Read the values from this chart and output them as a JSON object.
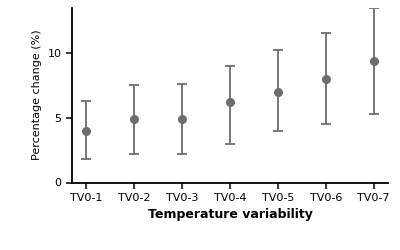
{
  "categories": [
    "TV0-1",
    "TV0-2",
    "TV0-3",
    "TV0-4",
    "TV0-5",
    "TV0-6",
    "TV0-7"
  ],
  "centers": [
    4.0,
    4.9,
    4.9,
    6.2,
    7.0,
    8.0,
    9.4
  ],
  "lower": [
    1.8,
    2.2,
    2.2,
    3.0,
    4.0,
    4.5,
    5.3
  ],
  "upper": [
    6.3,
    7.5,
    7.6,
    9.0,
    10.2,
    11.5,
    13.5
  ],
  "xlabel": "Temperature variability",
  "ylabel": "Percentage change (%)",
  "ylim": [
    0,
    13.5
  ],
  "yticks": [
    0,
    5,
    10
  ],
  "marker_color": "#6d6d6d",
  "line_color": "#6d6d6d",
  "marker_size": 5.5,
  "capsize": 3.5,
  "linewidth": 1.3,
  "background_color": "#ffffff",
  "xlabel_fontsize": 9,
  "ylabel_fontsize": 8,
  "tick_labelsize": 8
}
